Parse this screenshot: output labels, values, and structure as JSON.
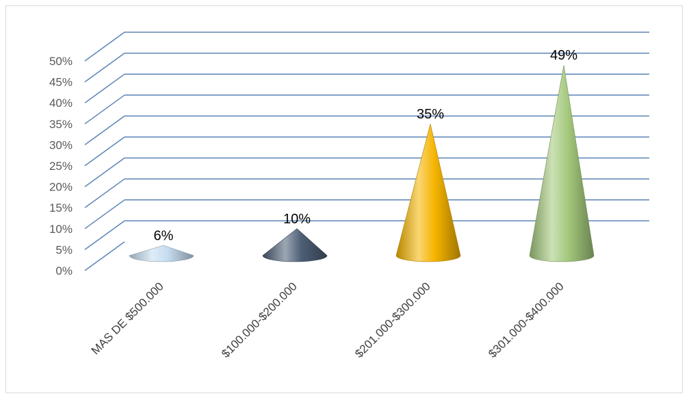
{
  "chart_data": {
    "type": "bar",
    "bar_shape": "cone-3d",
    "categories": [
      "MAS DE $500.000",
      "$100.000-$200.000",
      "$201.000-$300.000",
      "$301.000-$400.000"
    ],
    "values": [
      6,
      10,
      35,
      49
    ],
    "data_labels": [
      "6%",
      "10%",
      "35%",
      "49%"
    ],
    "y_tick_labels": [
      "0%",
      "5%",
      "10%",
      "15%",
      "20%",
      "25%",
      "30%",
      "35%",
      "40%",
      "45%",
      "50%"
    ],
    "ylim": [
      0,
      50
    ],
    "y_step": 5,
    "grid": true,
    "legend": "none",
    "colors": {
      "gridline": "#5b83b5",
      "series": [
        "#c5dcf0",
        "#4d5e75",
        "#f5b400",
        "#a3c87b"
      ]
    }
  }
}
